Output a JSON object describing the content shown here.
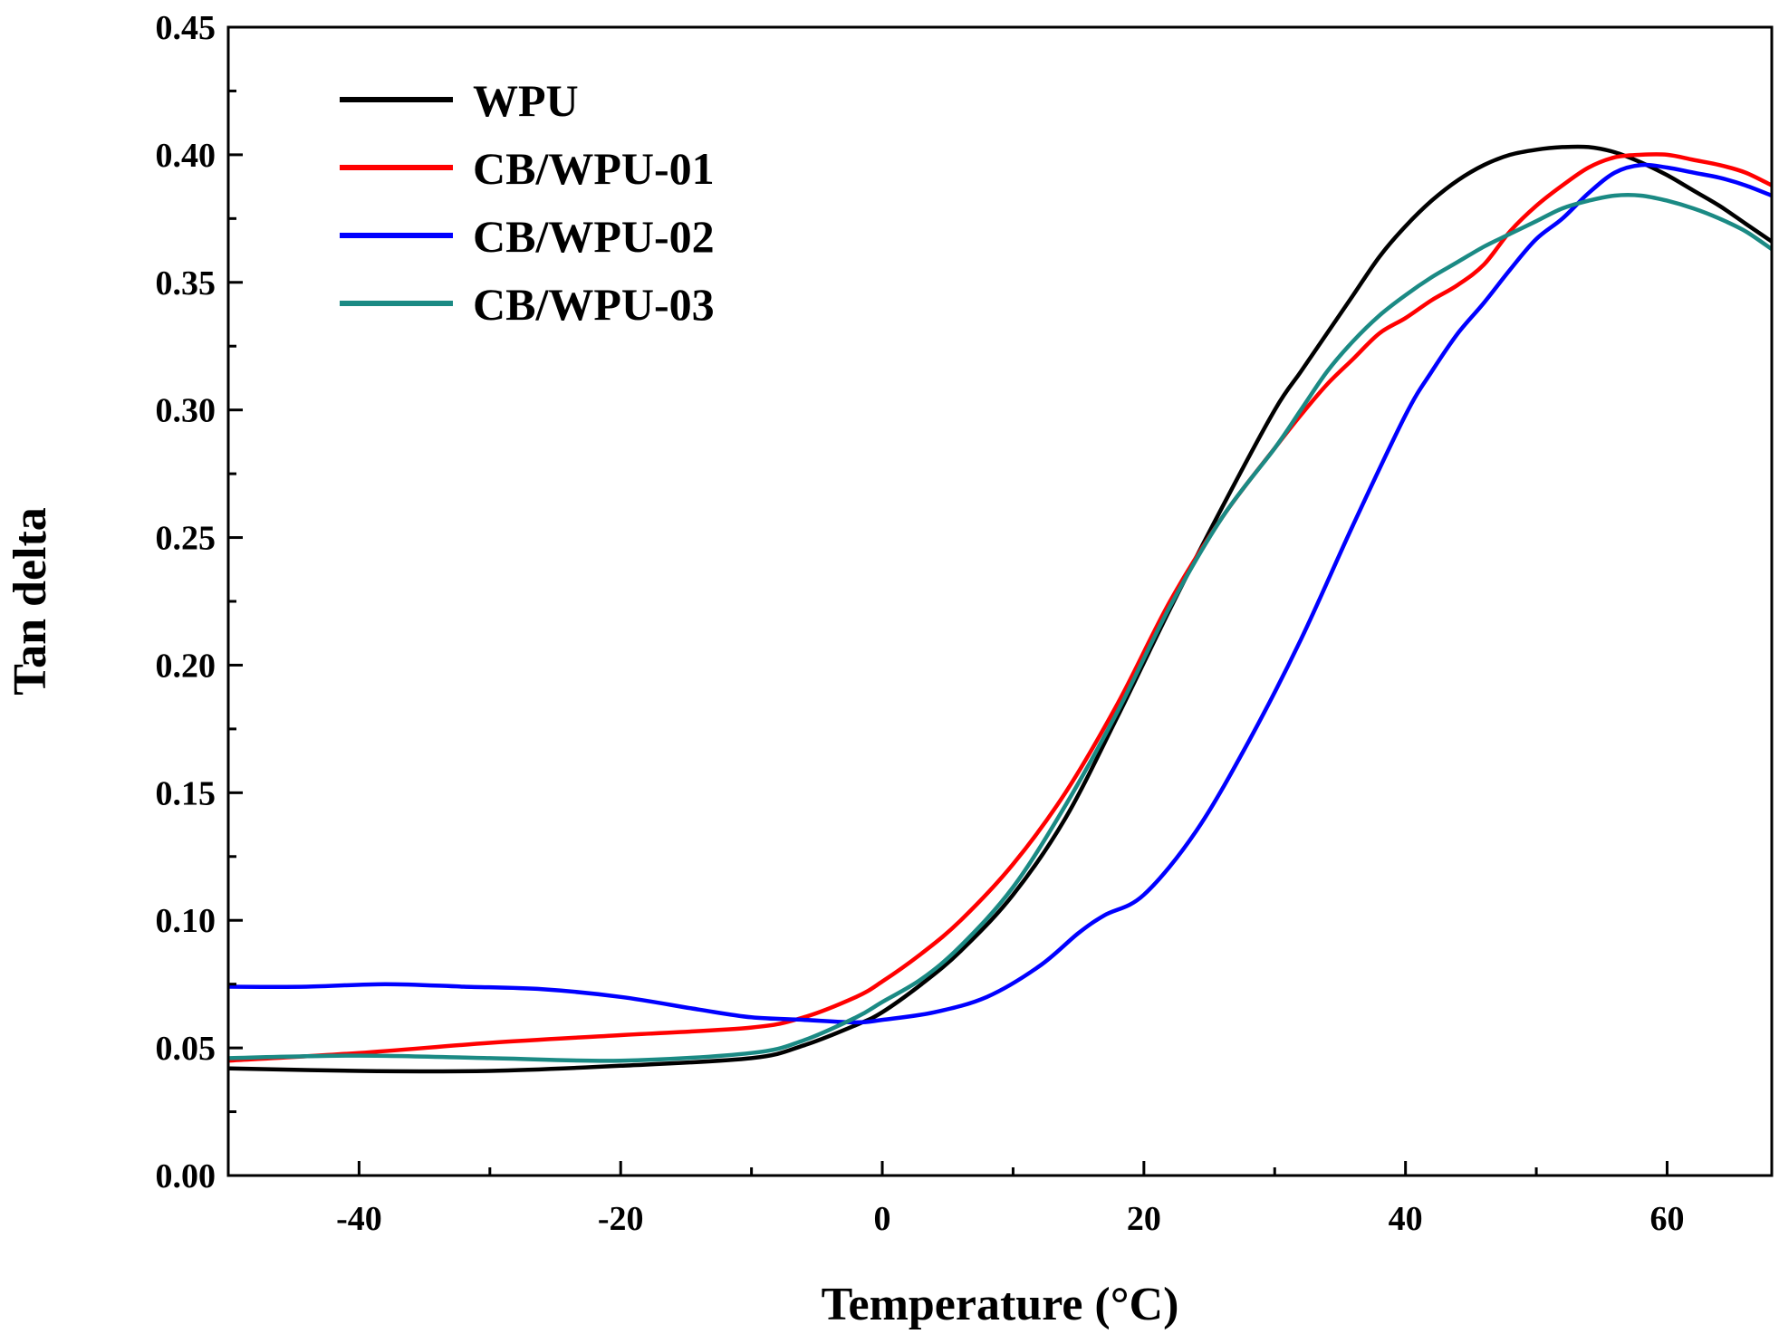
{
  "chart_data": {
    "type": "line",
    "title": "",
    "xlabel": "Temperature (°C)",
    "ylabel": "Tan delta",
    "xlim": [
      -50,
      68
    ],
    "ylim": [
      0,
      0.45
    ],
    "x_major_ticks": [
      -40,
      -20,
      0,
      20,
      40,
      60
    ],
    "x_tick_labels": [
      "-40",
      "-20",
      "0",
      "20",
      "40",
      "60"
    ],
    "y_major_ticks": [
      0,
      0.05,
      0.1,
      0.15,
      0.2,
      0.25,
      0.3,
      0.35,
      0.4,
      0.45
    ],
    "y_tick_labels": [
      "0.00",
      "0.05",
      "0.10",
      "0.15",
      "0.20",
      "0.25",
      "0.30",
      "0.35",
      "0.40",
      "0.45"
    ],
    "grid": false,
    "legend_position": "top-left",
    "series": [
      {
        "name": "WPU",
        "color": "#000000",
        "x": [
          -50,
          -40,
          -30,
          -20,
          -10,
          -6,
          -2,
          0,
          3,
          6,
          10,
          14,
          18,
          22,
          26,
          30,
          32,
          34,
          36,
          38,
          40,
          42,
          44,
          46,
          48,
          50,
          52,
          54,
          56,
          58,
          60,
          62,
          64,
          66,
          68
        ],
        "y": [
          0.042,
          0.041,
          0.041,
          0.043,
          0.046,
          0.051,
          0.059,
          0.064,
          0.075,
          0.088,
          0.11,
          0.14,
          0.18,
          0.222,
          0.262,
          0.3,
          0.315,
          0.33,
          0.345,
          0.36,
          0.372,
          0.382,
          0.39,
          0.396,
          0.4,
          0.402,
          0.403,
          0.403,
          0.401,
          0.397,
          0.392,
          0.386,
          0.38,
          0.373,
          0.366
        ]
      },
      {
        "name": "CB/WPU-01",
        "color": "#ff0000",
        "x": [
          -50,
          -40,
          -30,
          -20,
          -10,
          -6,
          -2,
          0,
          3,
          6,
          10,
          14,
          18,
          22,
          26,
          30,
          32,
          34,
          36,
          38,
          40,
          42,
          44,
          46,
          48,
          50,
          52,
          54,
          56,
          58,
          60,
          62,
          64,
          66,
          68
        ],
        "y": [
          0.045,
          0.048,
          0.052,
          0.055,
          0.058,
          0.062,
          0.07,
          0.076,
          0.087,
          0.1,
          0.122,
          0.15,
          0.185,
          0.225,
          0.258,
          0.285,
          0.298,
          0.31,
          0.32,
          0.33,
          0.336,
          0.343,
          0.349,
          0.357,
          0.37,
          0.38,
          0.388,
          0.395,
          0.399,
          0.4,
          0.4,
          0.398,
          0.396,
          0.393,
          0.388
        ]
      },
      {
        "name": "CB/WPU-02",
        "color": "#0000ff",
        "x": [
          -50,
          -44,
          -38,
          -32,
          -26,
          -20,
          -14,
          -10,
          -6,
          -2,
          0,
          4,
          8,
          12,
          15,
          17,
          20,
          24,
          28,
          32,
          36,
          40,
          42,
          44,
          46,
          48,
          50,
          52,
          54,
          56,
          58,
          60,
          62,
          64,
          66,
          68
        ],
        "y": [
          0.074,
          0.074,
          0.075,
          0.074,
          0.073,
          0.07,
          0.065,
          0.062,
          0.061,
          0.06,
          0.061,
          0.064,
          0.07,
          0.082,
          0.095,
          0.102,
          0.11,
          0.135,
          0.17,
          0.21,
          0.255,
          0.298,
          0.315,
          0.33,
          0.342,
          0.355,
          0.367,
          0.375,
          0.385,
          0.393,
          0.396,
          0.395,
          0.393,
          0.391,
          0.388,
          0.384
        ]
      },
      {
        "name": "CB/WPU-03",
        "color": "#1b8a84",
        "x": [
          -50,
          -40,
          -30,
          -20,
          -10,
          -6,
          -2,
          0,
          3,
          6,
          10,
          14,
          18,
          22,
          26,
          30,
          32,
          34,
          36,
          38,
          40,
          42,
          44,
          46,
          48,
          50,
          52,
          54,
          56,
          58,
          60,
          62,
          64,
          66,
          68
        ],
        "y": [
          0.046,
          0.047,
          0.046,
          0.045,
          0.048,
          0.053,
          0.062,
          0.068,
          0.077,
          0.09,
          0.113,
          0.145,
          0.182,
          0.223,
          0.258,
          0.285,
          0.3,
          0.315,
          0.327,
          0.337,
          0.345,
          0.352,
          0.358,
          0.364,
          0.369,
          0.374,
          0.379,
          0.382,
          0.384,
          0.384,
          0.382,
          0.379,
          0.375,
          0.37,
          0.363
        ]
      }
    ]
  }
}
